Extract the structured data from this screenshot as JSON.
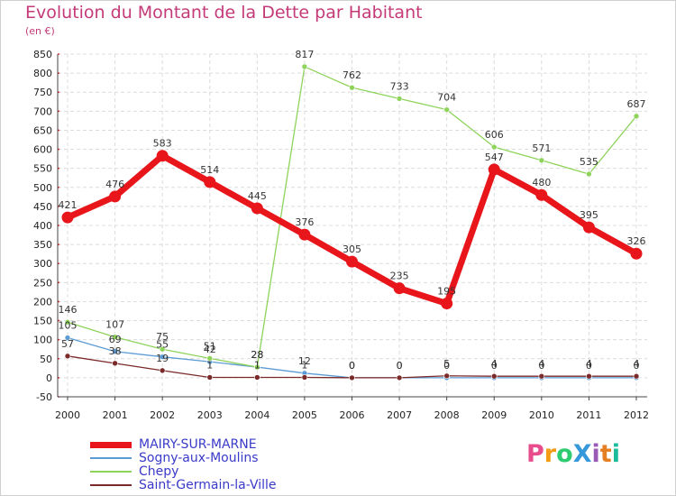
{
  "title": "Evolution du Montant de la Dette par Habitant",
  "subtitle": "(en €)",
  "logo": {
    "text": "ProXiti",
    "colors": [
      "#e74c8c",
      "#f39c12",
      "#2ecc71",
      "#3498db",
      "#9b59b6",
      "#e67e22",
      "#1abc9c"
    ]
  },
  "chart_data": {
    "type": "line",
    "title": "Evolution du Montant de la Dette par Habitant",
    "ylabel": "(en €)",
    "x": [
      "2000",
      "2001",
      "2002",
      "2003",
      "2004",
      "2005",
      "2006",
      "2007",
      "2008",
      "2009",
      "2010",
      "2011",
      "2012"
    ],
    "ylim": [
      -50,
      850
    ],
    "yticks": [
      "-50",
      "0",
      "50",
      "100",
      "150",
      "200",
      "250",
      "300",
      "350",
      "400",
      "450",
      "500",
      "550",
      "600",
      "650",
      "700",
      "750",
      "800",
      "850"
    ],
    "grid": true,
    "legend_position": "bottom-left",
    "series": [
      {
        "name": "MAIRY-SUR-MARNE",
        "color": "#e8161b",
        "width": "thick",
        "values": [
          421,
          476,
          583,
          514,
          445,
          376,
          305,
          235,
          195,
          547,
          480,
          395,
          326
        ],
        "labels": [
          "421",
          "476",
          "583",
          "514",
          "445",
          "376",
          "305",
          "235",
          "195",
          "547",
          "480",
          "395",
          "326"
        ]
      },
      {
        "name": "Sogny-aux-Moulins",
        "color": "#5b9bd5",
        "width": "thin",
        "values": [
          105,
          69,
          55,
          42,
          28,
          12,
          0,
          0,
          0,
          0,
          0,
          0,
          0
        ],
        "labels": [
          "105",
          "69",
          "55",
          "42",
          "28",
          "12",
          "0",
          "0",
          "0",
          "0",
          "0",
          "0",
          "0"
        ]
      },
      {
        "name": "Chepy",
        "color": "#8ed35a",
        "width": "thin",
        "values": [
          146,
          107,
          75,
          51,
          28,
          817,
          762,
          733,
          704,
          606,
          571,
          535,
          687
        ],
        "labels": [
          "146",
          "107",
          "75",
          "51",
          "28",
          "817",
          "762",
          "733",
          "704",
          "606",
          "571",
          "535",
          "687"
        ]
      },
      {
        "name": "Saint-Germain-la-Ville",
        "color": "#7b2a2a",
        "width": "thin",
        "values": [
          57,
          38,
          19,
          1,
          1,
          1,
          0,
          0,
          5,
          4,
          4,
          4,
          4
        ],
        "labels": [
          "57",
          "38",
          "19",
          "1",
          "1",
          "1",
          "0",
          "0",
          "5",
          "4",
          "4",
          "4",
          "4"
        ]
      }
    ]
  }
}
